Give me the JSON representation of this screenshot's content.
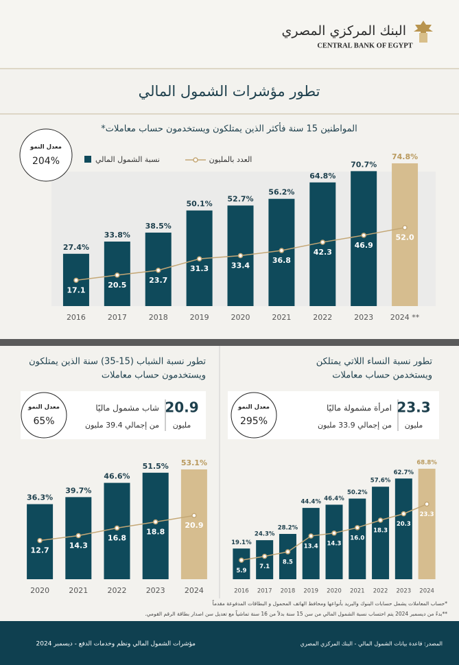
{
  "header": {
    "logo_ar": "البنك المركزي المصري",
    "logo_en": "CENTRAL BANK OF EGYPT"
  },
  "title": "تطور مؤشرات الشمول المالي",
  "chart_data": [
    {
      "type": "bar",
      "title_lines": [
        "المواطنين 15 سنة فأكثر الذين يمتلكون ويستخدمون حساب معاملات*"
      ],
      "categories": [
        "2016",
        "2017",
        "2018",
        "2019",
        "2020",
        "2021",
        "2022",
        "2023",
        "2024 **"
      ],
      "series": [
        {
          "name": "نسبة الشمول المالي",
          "colors": [
            "#0f4a5b",
            "#0f4a5b",
            "#0f4a5b",
            "#0f4a5b",
            "#0f4a5b",
            "#0f4a5b",
            "#0f4a5b",
            "#0f4a5b",
            "#d6bd8f"
          ],
          "values": [
            27.4,
            33.8,
            38.5,
            50.1,
            52.7,
            56.2,
            64.8,
            70.7,
            74.8
          ],
          "value_labels": [
            "27.4%",
            "33.8%",
            "38.5%",
            "50.1%",
            "52.7%",
            "56.2%",
            "64.8%",
            "70.7%",
            "74.8%"
          ]
        },
        {
          "name": "العدد بالمليون",
          "type": "line",
          "color": "#c4a775",
          "values": [
            17.1,
            20.5,
            23.7,
            31.3,
            33.4,
            36.8,
            42.3,
            46.9,
            52.0
          ],
          "value_labels": [
            "17.1",
            "20.5",
            "23.7",
            "31.3",
            "33.4",
            "36.8",
            "42.3",
            "46.9",
            "52.0"
          ]
        }
      ],
      "growth": {
        "label": "معدل النمو",
        "value": 204,
        "value_label": "204%"
      }
    },
    {
      "type": "bar",
      "title_lines": [
        "تطور نسبة الشباب (15-35) سنة الذين يمتلكون",
        "ويستخدمون حساب معاملات"
      ],
      "categories": [
        "2020",
        "2021",
        "2022",
        "2023",
        "2024"
      ],
      "series": [
        {
          "name": "نسبة الشمول المالي",
          "colors": [
            "#0f4a5b",
            "#0f4a5b",
            "#0f4a5b",
            "#0f4a5b",
            "#d6bd8f"
          ],
          "values": [
            36.3,
            39.7,
            46.6,
            51.5,
            53.1
          ],
          "value_labels": [
            "36.3%",
            "39.7%",
            "46.6%",
            "51.5%",
            "53.1%"
          ]
        },
        {
          "name": "العدد بالمليون",
          "type": "line",
          "color": "#c4a775",
          "values": [
            12.7,
            14.3,
            16.8,
            18.8,
            20.9
          ],
          "value_labels": [
            "12.7",
            "14.3",
            "16.8",
            "18.8",
            "20.9"
          ]
        }
      ],
      "highlight": {
        "value": 20.9,
        "unit": "مليون",
        "label": "شاب مشمول ماليًا",
        "note": "من إجمالي 39.4 مليون"
      },
      "growth": {
        "label": "معدل النمو",
        "value": 65,
        "value_label": "65%"
      }
    },
    {
      "type": "bar",
      "title_lines": [
        "تطور نسبة النساء اللاتي يمتلكن",
        "ويستخدمن حساب معاملات"
      ],
      "categories": [
        "2016",
        "2017",
        "2018",
        "2019",
        "2020",
        "2021",
        "2022",
        "2023",
        "2024"
      ],
      "series": [
        {
          "name": "نسبة الشمول المالي",
          "colors": [
            "#0f4a5b",
            "#0f4a5b",
            "#0f4a5b",
            "#0f4a5b",
            "#0f4a5b",
            "#0f4a5b",
            "#0f4a5b",
            "#0f4a5b",
            "#d6bd8f"
          ],
          "values": [
            19.1,
            24.3,
            28.2,
            44.4,
            46.4,
            50.2,
            57.6,
            62.7,
            68.8
          ],
          "value_labels": [
            "19.1%",
            "24.3%",
            "28.2%",
            "44.4%",
            "46.4%",
            "50.2%",
            "57.6%",
            "62.7%",
            "68.8%"
          ]
        },
        {
          "name": "العدد بالمليون",
          "type": "line",
          "color": "#c4a775",
          "values": [
            5.9,
            7.1,
            8.5,
            13.4,
            14.3,
            16.0,
            18.3,
            20.3,
            23.3
          ],
          "value_labels": [
            "5.9",
            "7.1",
            "8.5",
            "13.4",
            "14.3",
            "16.0",
            "18.3",
            "20.3",
            "23.3"
          ]
        }
      ],
      "highlight": {
        "value": 23.3,
        "unit": "مليون",
        "label": "امرأة مشمولة ماليًا",
        "note": "من إجمالي 33.9 مليون"
      },
      "growth": {
        "label": "معدل النمو",
        "value": 295,
        "value_label": "295%"
      }
    }
  ],
  "footnotes": [
    "*حساب المعاملات يشمل حسابات البنوك والبريد بأنواعها ومحافظ الهاتف المحمول و البطاقات المدفوعة مقدماً",
    "**بدءً من ديسمبر 2024 يتم احتساب نسبة الشمول المالي من سن 15 سنة بدلاً من 16 سنة تماشياً مع تعديل سن اصدار بطاقة الرقم القومي."
  ],
  "footer": {
    "left": "مؤشرات الشمول المالي ونظم وخدمات الدفع - ديسمبر 2024",
    "right": "المصدر: قاعدة بيانات الشمول المالي - البنك المركزي المصري"
  }
}
